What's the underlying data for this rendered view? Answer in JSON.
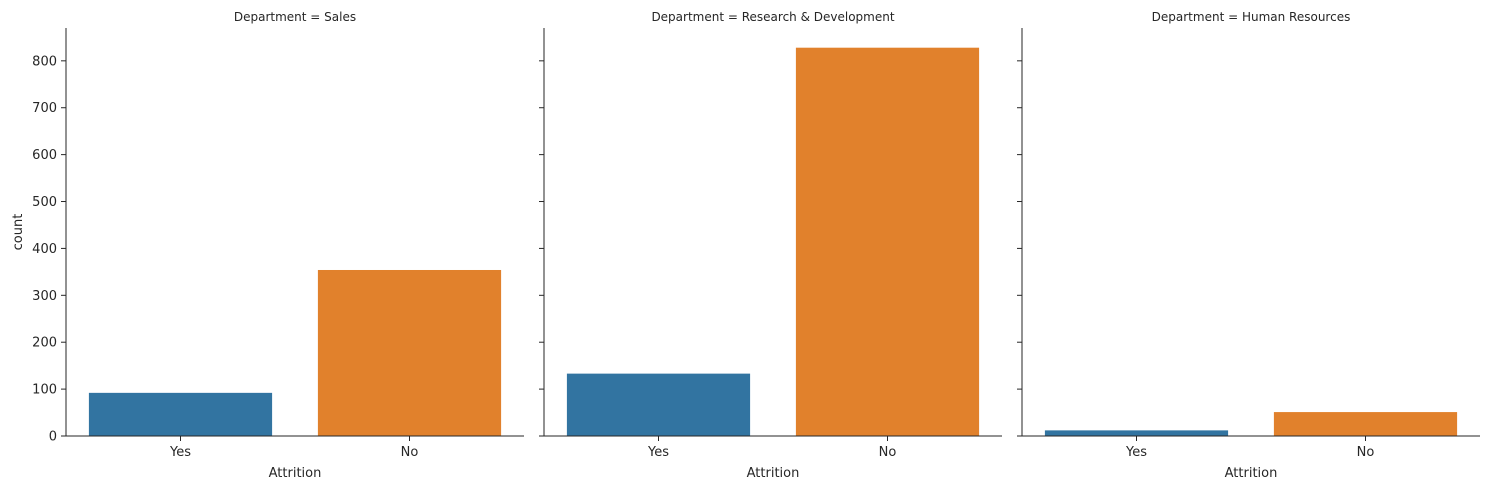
{
  "chart_data": {
    "type": "bar",
    "ylabel": "count",
    "ylim": [
      0,
      870
    ],
    "yticks": [
      0,
      100,
      200,
      300,
      400,
      500,
      600,
      700,
      800
    ],
    "grid": false,
    "legend": "none",
    "colors": {
      "Yes": "#3274a1",
      "No": "#e1812c"
    },
    "categories": [
      "Yes",
      "No"
    ],
    "panels": [
      {
        "title": "Department = Sales",
        "xlabel": "Attrition",
        "values": [
          92,
          354
        ]
      },
      {
        "title": "Department = Research & Development",
        "xlabel": "Attrition",
        "values": [
          133,
          828
        ]
      },
      {
        "title": "Department = Human Resources",
        "xlabel": "Attrition",
        "values": [
          12,
          51
        ]
      }
    ]
  }
}
